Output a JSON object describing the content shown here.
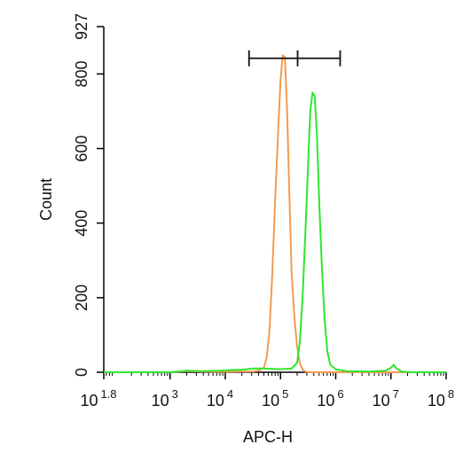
{
  "chart_data": {
    "type": "line",
    "title": "",
    "xlabel": "APC-H",
    "ylabel": "Count",
    "x_scale": "log10",
    "xlim_exponent": [
      1.8,
      8
    ],
    "ylim": [
      0,
      927
    ],
    "x_ticks": [
      {
        "base": "10",
        "exp": "1.8",
        "value": 1.8
      },
      {
        "base": "10",
        "exp": "3",
        "value": 3
      },
      {
        "base": "10",
        "exp": "4",
        "value": 4
      },
      {
        "base": "10",
        "exp": "5",
        "value": 5
      },
      {
        "base": "10",
        "exp": "6",
        "value": 6
      },
      {
        "base": "10",
        "exp": "7",
        "value": 7
      },
      {
        "base": "10",
        "exp": "8",
        "value": 8
      }
    ],
    "y_ticks": [
      {
        "label": "0",
        "value": 0
      },
      {
        "label": "200",
        "value": 200
      },
      {
        "label": "400",
        "value": 400
      },
      {
        "label": "600",
        "value": 600
      },
      {
        "label": "800",
        "value": 800
      },
      {
        "label": "927",
        "value": 927
      }
    ],
    "gate": {
      "x_start_exp": 4.43,
      "x_mid_exp": 5.31,
      "x_end_exp": 6.08,
      "y": 842
    },
    "series": [
      {
        "color": "#f39a4f",
        "points": [
          [
            1.8,
            0
          ],
          [
            3.0,
            0
          ],
          [
            3.3,
            3
          ],
          [
            3.6,
            2
          ],
          [
            3.9,
            1
          ],
          [
            4.2,
            2
          ],
          [
            4.5,
            2
          ],
          [
            4.6,
            4
          ],
          [
            4.7,
            12
          ],
          [
            4.75,
            40
          ],
          [
            4.8,
            110
          ],
          [
            4.85,
            260
          ],
          [
            4.9,
            450
          ],
          [
            4.95,
            620
          ],
          [
            5.0,
            780
          ],
          [
            5.04,
            850
          ],
          [
            5.08,
            845
          ],
          [
            5.12,
            700
          ],
          [
            5.16,
            480
          ],
          [
            5.2,
            270
          ],
          [
            5.25,
            150
          ],
          [
            5.3,
            70
          ],
          [
            5.35,
            25
          ],
          [
            5.4,
            8
          ],
          [
            5.45,
            2
          ],
          [
            5.5,
            0
          ],
          [
            8,
            0
          ]
        ]
      },
      {
        "color": "#2ee62e",
        "points": [
          [
            1.8,
            0
          ],
          [
            3.0,
            0
          ],
          [
            3.3,
            4
          ],
          [
            3.6,
            3
          ],
          [
            3.9,
            4
          ],
          [
            4.1,
            6
          ],
          [
            4.3,
            7
          ],
          [
            4.5,
            10
          ],
          [
            4.7,
            10
          ],
          [
            5.0,
            8
          ],
          [
            5.2,
            10
          ],
          [
            5.3,
            25
          ],
          [
            5.35,
            80
          ],
          [
            5.4,
            200
          ],
          [
            5.45,
            370
          ],
          [
            5.5,
            560
          ],
          [
            5.54,
            700
          ],
          [
            5.58,
            750
          ],
          [
            5.62,
            740
          ],
          [
            5.66,
            640
          ],
          [
            5.7,
            460
          ],
          [
            5.75,
            280
          ],
          [
            5.8,
            140
          ],
          [
            5.85,
            55
          ],
          [
            5.9,
            20
          ],
          [
            6.0,
            8
          ],
          [
            6.2,
            3
          ],
          [
            6.6,
            2
          ],
          [
            6.9,
            4
          ],
          [
            7.0,
            12
          ],
          [
            7.05,
            20
          ],
          [
            7.1,
            10
          ],
          [
            7.2,
            2
          ],
          [
            7.4,
            0
          ],
          [
            8,
            0
          ]
        ]
      }
    ]
  }
}
